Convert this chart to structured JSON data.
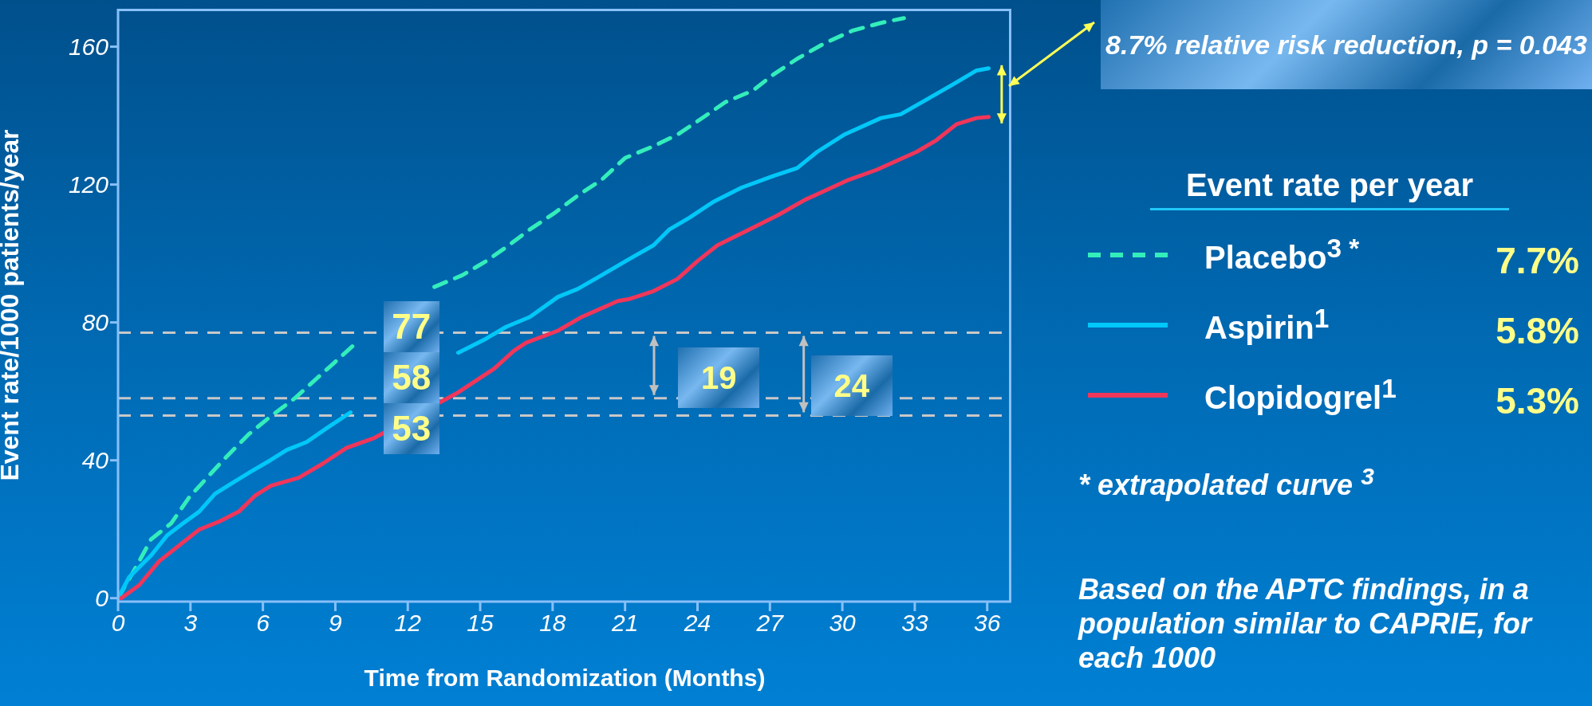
{
  "chart_data": {
    "type": "line",
    "xlabel": "Time from Randomization (Months)",
    "ylabel": "Event rate/1000 patients/year",
    "legend_title": "Event rate per year",
    "legend": "right",
    "grid": false,
    "marker": "none",
    "line_style": "solid",
    "xlim": [
      0,
      37
    ],
    "xticks": [
      0,
      3,
      6,
      9,
      12,
      15,
      18,
      21,
      24,
      27,
      30,
      33,
      36
    ],
    "ylim": [
      -1,
      171
    ],
    "yticks": [
      0,
      40,
      80,
      120,
      160
    ],
    "series": [
      {
        "name": "Placebo$^{3 *}$",
        "color": "#33eebb",
        "line_style": "dashed",
        "x": [
          0,
          0.79,
          1.37,
          2.2,
          2.94,
          3.68,
          4.5,
          5.42,
          6.33,
          7.32,
          8.14,
          8.97,
          9.96,
          10.79,
          13.1,
          14.26,
          15.25,
          16.07,
          17.06,
          18.05,
          19.04,
          20.03,
          21.0,
          22.2,
          23.2,
          24.3,
          25.15,
          26.3,
          27.14,
          28.13,
          29.29,
          30.4,
          31.6,
          32.55
        ],
        "values": [
          0,
          9.6,
          17.1,
          21.7,
          29.2,
          34.9,
          41.1,
          47.6,
          52.8,
          58.0,
          63.2,
          68.4,
          74.7,
          null,
          90.3,
          93.7,
          97.8,
          101.8,
          107.0,
          111.6,
          116.8,
          121.4,
          127.7,
          131.2,
          134.6,
          139.8,
          143.9,
          147.3,
          151.9,
          156.5,
          161.1,
          164.6,
          166.9,
          168.3
        ]
      },
      {
        "name": "Aspirin$^{1}$",
        "color": "#00c8f8",
        "x": [
          0,
          0.46,
          1.37,
          2.03,
          2.69,
          3.36,
          4.02,
          4.68,
          5.5,
          6.33,
          6.99,
          7.81,
          8.64,
          9.63,
          10.79,
          14.09,
          15.25,
          16.07,
          17.06,
          18.22,
          19.04,
          20.03,
          21.03,
          22.18,
          22.84,
          23.67,
          24.66,
          25.82,
          27.14,
          28.13,
          28.96,
          30.11,
          31.6,
          32.42,
          33.42,
          34.57,
          35.56,
          36.06
        ],
        "values": [
          0,
          6.1,
          12.4,
          18.2,
          21.7,
          25.1,
          30.3,
          33.2,
          36.7,
          40.1,
          43.0,
          45.3,
          49.3,
          53.9,
          null,
          71.2,
          75.3,
          78.7,
          81.6,
          87.4,
          89.7,
          93.7,
          97.8,
          102.4,
          107.0,
          110.4,
          115.0,
          119.1,
          122.5,
          124.8,
          129.5,
          134.6,
          139.3,
          140.4,
          144.4,
          149.0,
          153.1,
          153.7
        ]
      },
      {
        "name": "Clopidogrel$^{1}$",
        "color": "#f0365a",
        "x": [
          0.13,
          0.88,
          1.7,
          2.53,
          3.36,
          4.18,
          5.0,
          5.67,
          6.33,
          7.48,
          8.47,
          9.46,
          10.62,
          14.09,
          15.58,
          16.4,
          16.9,
          18.22,
          19.21,
          20.7,
          21.19,
          22.18,
          23.17,
          24.0,
          24.83,
          25.98,
          27.3,
          28.46,
          30.27,
          31.43,
          33.08,
          33.9,
          34.73,
          35.56,
          36.06
        ],
        "values": [
          0,
          3.8,
          10.7,
          15.3,
          19.9,
          22.2,
          25.1,
          29.7,
          32.6,
          34.9,
          39.0,
          43.6,
          46.5,
          59.7,
          66.6,
          71.8,
          74.1,
          77.6,
          81.6,
          86.2,
          86.8,
          89.1,
          92.6,
          97.8,
          102.4,
          106.4,
          111.0,
          115.6,
          121.4,
          124.3,
          129.5,
          132.9,
          137.5,
          139.3,
          139.6
        ]
      }
    ],
    "ref_lines": [
      {
        "axis": "y",
        "value": 77,
        "label": "77",
        "color": "#c8c8c8",
        "line_style": "dashed"
      },
      {
        "axis": "y",
        "value": 58,
        "label": "58",
        "color": "#c8c8c8",
        "line_style": "dashed"
      },
      {
        "axis": "y",
        "value": 53,
        "label": "53",
        "color": "#c8c8c8",
        "line_style": "dashed"
      }
    ],
    "annotations": [
      "8.7% relative risk reduction, p = 0.043",
      "7.7%",
      "5.8%",
      "5.3%",
      "* extrapolated curve $^{3}$",
      "Based on the APTC findings, in a population similar to CAPRIE, for each 1000",
      "19",
      "24"
    ]
  }
}
